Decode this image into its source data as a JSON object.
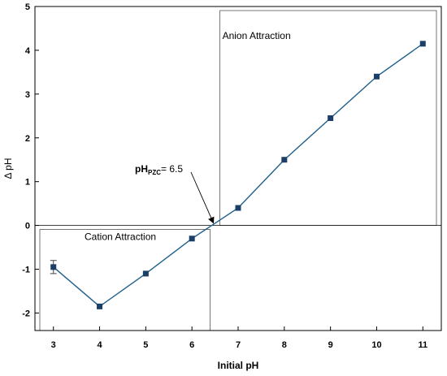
{
  "chart_data": {
    "type": "scatter",
    "title": "",
    "xlabel": "Initial pH",
    "ylabel": "Δ pH",
    "xlim": [
      2.6,
      11.4
    ],
    "ylim": [
      -2.4,
      5
    ],
    "xticks": [
      3,
      4,
      5,
      6,
      7,
      8,
      9,
      10,
      11
    ],
    "yticks": [
      -2,
      -1,
      0,
      1,
      2,
      3,
      4,
      5
    ],
    "grid": false,
    "legend": "none",
    "line_color": "#1f5f8b",
    "marker_color": "#1b3f66",
    "series": [
      {
        "x": [
          3,
          4,
          5,
          6,
          7,
          8,
          9,
          10,
          11
        ],
        "y": [
          -0.95,
          -1.85,
          -1.1,
          -0.3,
          0.4,
          1.5,
          2.45,
          3.4,
          4.15
        ],
        "error": [
          0.15,
          0.03,
          0.03,
          0.03,
          0.03,
          0.03,
          0.03,
          0.03,
          0.05
        ]
      }
    ],
    "regions": [
      {
        "label": "Cation Attraction",
        "x": [
          2.6,
          6.5
        ],
        "y": [
          -2.4,
          0
        ]
      },
      {
        "label": "Anion Attraction",
        "x": [
          6.5,
          11.4
        ],
        "y": [
          0,
          5
        ]
      }
    ],
    "annotation": {
      "label_main": "pH",
      "label_sub": "PZC",
      "label_value": "= 6.5",
      "target_x": 6.5,
      "target_y": 0
    }
  }
}
